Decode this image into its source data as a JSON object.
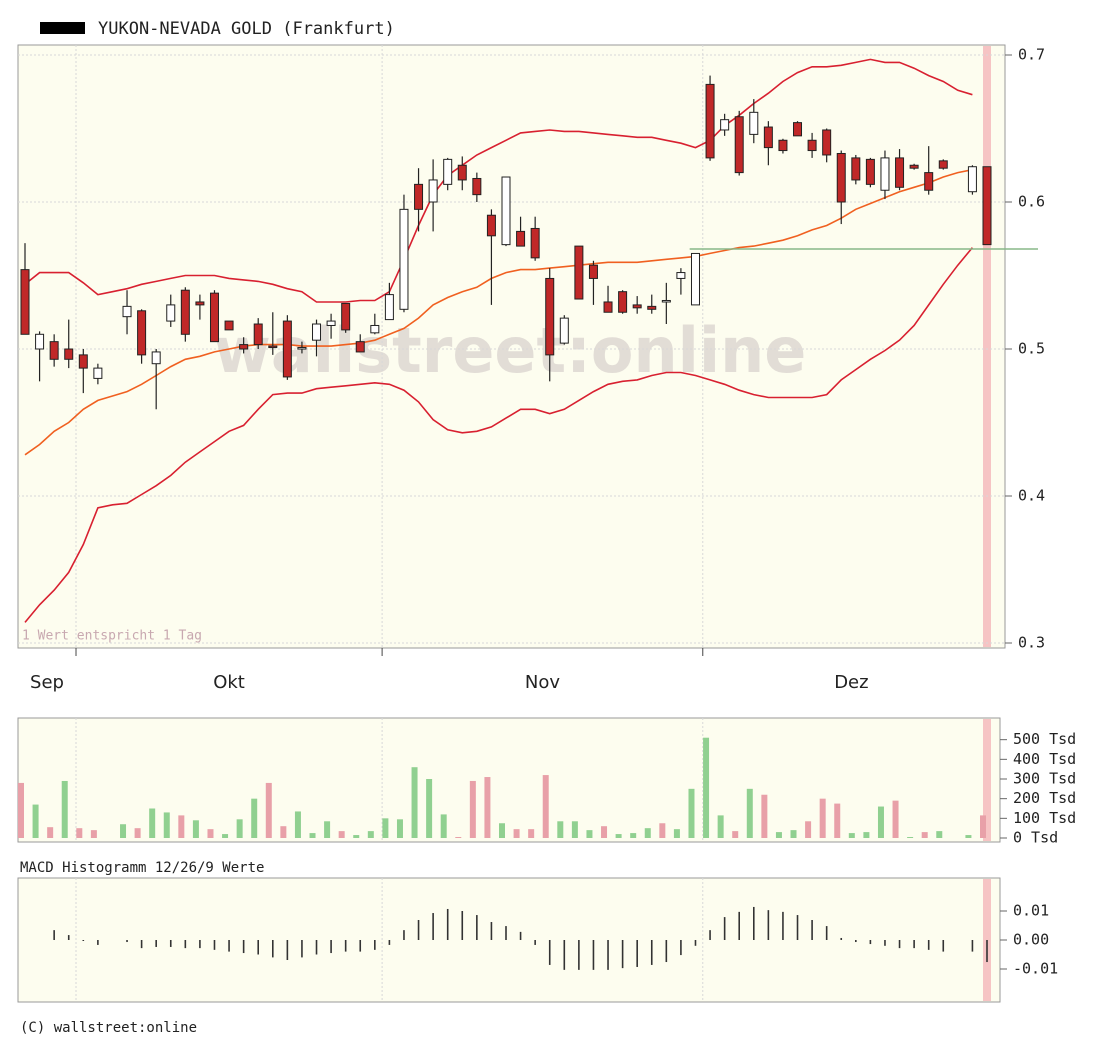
{
  "title": "YUKON-NEVADA GOLD (Frankfurt)",
  "footer": "(C) wallstreet:online",
  "chart_data": [
    {
      "type": "candlestick",
      "watermark": "wallstreet:online",
      "note": "1 Wert entspricht 1 Tag",
      "months": [
        "Sep",
        "Okt",
        "Nov",
        "Dez"
      ],
      "xticks": [
        3.5,
        24.5,
        46.5
      ],
      "open": [
        0.554,
        0.5,
        0.505,
        0.5,
        0.496,
        0.48,
        null,
        0.522,
        0.526,
        0.49,
        0.519,
        0.54,
        0.532,
        0.538,
        0.519,
        0.503,
        0.517,
        0.502,
        0.519,
        0.5,
        0.506,
        0.516,
        0.531,
        0.505,
        0.511,
        0.52,
        0.527,
        0.612,
        0.6,
        0.612,
        0.625,
        0.616,
        0.591,
        0.571,
        0.58,
        0.582,
        0.548,
        0.504,
        0.57,
        0.557,
        0.532,
        0.539,
        0.53,
        0.529,
        0.532,
        0.548,
        0.53,
        0.68,
        0.649,
        0.658,
        0.646,
        0.651,
        0.642,
        0.654,
        0.642,
        0.649,
        0.633,
        0.63,
        0.629,
        0.608,
        0.63,
        0.625,
        0.62,
        0.628,
        null,
        0.607,
        0.624
      ],
      "high": [
        0.572,
        0.512,
        0.51,
        0.52,
        0.5,
        0.49,
        null,
        0.54,
        0.527,
        0.5,
        0.537,
        0.542,
        0.537,
        0.54,
        0.519,
        0.508,
        0.521,
        0.525,
        0.523,
        0.505,
        0.52,
        0.524,
        0.531,
        0.51,
        0.524,
        0.545,
        0.605,
        0.623,
        0.629,
        0.63,
        0.631,
        0.62,
        0.595,
        0.617,
        0.59,
        0.59,
        0.555,
        0.523,
        0.57,
        0.56,
        0.543,
        0.54,
        0.536,
        0.537,
        0.545,
        0.555,
        0.565,
        0.686,
        0.66,
        0.662,
        0.67,
        0.655,
        0.643,
        0.655,
        0.647,
        0.65,
        0.635,
        0.632,
        0.63,
        0.635,
        0.636,
        0.626,
        0.638,
        0.629,
        null,
        0.625,
        0.624
      ],
      "low": [
        0.51,
        0.478,
        0.488,
        0.487,
        0.47,
        0.476,
        null,
        0.51,
        0.49,
        0.459,
        0.515,
        0.505,
        0.52,
        0.505,
        0.513,
        0.497,
        0.5,
        0.496,
        0.479,
        0.497,
        0.495,
        0.507,
        0.511,
        0.498,
        0.51,
        0.52,
        0.525,
        0.58,
        0.58,
        0.608,
        0.608,
        0.6,
        0.53,
        0.57,
        0.57,
        0.56,
        0.478,
        0.503,
        0.534,
        0.53,
        0.525,
        0.524,
        0.524,
        0.524,
        0.517,
        0.537,
        0.53,
        0.628,
        0.645,
        0.618,
        0.64,
        0.625,
        0.633,
        0.645,
        0.63,
        0.627,
        0.585,
        0.612,
        0.61,
        0.602,
        0.608,
        0.622,
        0.605,
        0.622,
        null,
        0.605,
        0.571
      ],
      "close": [
        0.51,
        0.51,
        0.493,
        0.493,
        0.487,
        0.487,
        null,
        0.529,
        0.496,
        0.498,
        0.53,
        0.51,
        0.53,
        0.505,
        0.513,
        0.5,
        0.503,
        0.501,
        0.481,
        0.501,
        0.517,
        0.519,
        0.513,
        0.498,
        0.516,
        0.537,
        0.595,
        0.595,
        0.615,
        0.629,
        0.615,
        0.605,
        0.577,
        0.617,
        0.57,
        0.562,
        0.496,
        0.521,
        0.534,
        0.548,
        0.525,
        0.525,
        0.528,
        0.527,
        0.533,
        0.552,
        0.565,
        0.63,
        0.656,
        0.62,
        0.661,
        0.637,
        0.635,
        0.645,
        0.635,
        0.632,
        0.6,
        0.615,
        0.612,
        0.63,
        0.61,
        0.623,
        0.608,
        0.623,
        null,
        0.624,
        0.571
      ],
      "up_color": "#ffffff",
      "down_color": "#c02828",
      "overlays": [
        {
          "color": "#d82030",
          "values": [
            0.544,
            0.552,
            0.552,
            0.552,
            0.545,
            0.537,
            0.539,
            0.541,
            0.544,
            0.546,
            0.548,
            0.55,
            0.55,
            0.55,
            0.548,
            0.547,
            0.546,
            0.544,
            0.541,
            0.539,
            0.532,
            0.532,
            0.532,
            0.533,
            0.533,
            0.539,
            0.561,
            0.584,
            0.605,
            0.618,
            0.625,
            0.632,
            0.637,
            0.642,
            0.647,
            0.648,
            0.649,
            0.648,
            0.648,
            0.647,
            0.646,
            0.645,
            0.644,
            0.644,
            0.642,
            0.64,
            0.637,
            0.642,
            0.652,
            0.659,
            0.667,
            0.674,
            0.682,
            0.688,
            0.692,
            0.692,
            0.693,
            0.695,
            0.697,
            0.695,
            0.695,
            0.691,
            0.686,
            0.682,
            0.676,
            0.673,
            null
          ]
        },
        {
          "color": "#f06020",
          "values": [
            0.428,
            0.435,
            0.444,
            0.45,
            0.459,
            0.465,
            0.468,
            0.471,
            0.476,
            0.482,
            0.488,
            0.493,
            0.495,
            0.498,
            0.5,
            0.502,
            0.503,
            0.503,
            0.503,
            0.502,
            0.502,
            0.502,
            0.503,
            0.504,
            0.506,
            0.51,
            0.514,
            0.521,
            0.53,
            0.535,
            0.539,
            0.542,
            0.548,
            0.552,
            0.554,
            0.554,
            0.555,
            0.556,
            0.557,
            0.558,
            0.559,
            0.559,
            0.559,
            0.56,
            0.561,
            0.562,
            0.563,
            0.565,
            0.567,
            0.569,
            0.57,
            0.572,
            0.574,
            0.577,
            0.581,
            0.584,
            0.589,
            0.595,
            0.599,
            0.603,
            0.607,
            0.61,
            0.613,
            0.617,
            0.62,
            0.622,
            null
          ]
        },
        {
          "color": "#d82030",
          "values": [
            0.314,
            0.326,
            0.336,
            0.348,
            0.367,
            0.392,
            0.394,
            0.395,
            0.401,
            0.407,
            0.414,
            0.423,
            0.43,
            0.437,
            0.444,
            0.448,
            0.459,
            0.469,
            0.47,
            0.47,
            0.473,
            0.474,
            0.475,
            0.476,
            0.477,
            0.476,
            0.472,
            0.464,
            0.452,
            0.445,
            0.443,
            0.444,
            0.447,
            0.453,
            0.459,
            0.459,
            0.456,
            0.459,
            0.465,
            0.471,
            0.476,
            0.478,
            0.479,
            0.482,
            0.484,
            0.484,
            0.482,
            0.479,
            0.476,
            0.472,
            0.469,
            0.467,
            0.467,
            0.467,
            0.467,
            0.469,
            0.479,
            0.486,
            0.493,
            0.499,
            0.506,
            0.516,
            0.53,
            0.544,
            0.557,
            0.569,
            null
          ]
        }
      ],
      "support_level": 0.568,
      "support_color": "#88b888",
      "ylim": [
        0.3,
        0.7
      ],
      "yticks": [
        0.7,
        0.6,
        0.5,
        0.4,
        0.3
      ],
      "grid": true
    },
    {
      "type": "bar",
      "values": [
        280,
        170,
        55,
        290,
        50,
        40,
        null,
        70,
        50,
        150,
        130,
        115,
        90,
        45,
        20,
        95,
        200,
        280,
        60,
        135,
        25,
        85,
        35,
        15,
        35,
        100,
        95,
        360,
        300,
        120,
        5,
        290,
        310,
        75,
        45,
        45,
        320,
        85,
        85,
        40,
        60,
        20,
        25,
        50,
        75,
        45,
        250,
        510,
        115,
        35,
        250,
        220,
        30,
        40,
        85,
        200,
        175,
        25,
        30,
        160,
        190,
        5,
        30,
        35,
        null,
        15,
        115
      ],
      "colors": [
        "#e8a0a8",
        "#90d090",
        "#e8a0a8",
        "#90d090",
        "#e8a0a8",
        "#e8a0a8",
        null,
        "#90d090",
        "#e8a0a8",
        "#90d090",
        "#90d090",
        "#e8a0a8",
        "#90d090",
        "#e8a0a8",
        "#90d090",
        "#90d090",
        "#90d090",
        "#e8a0a8",
        "#e8a0a8",
        "#90d090",
        "#90d090",
        "#90d090",
        "#e8a0a8",
        "#90d090",
        "#90d090",
        "#90d090",
        "#90d090",
        "#90d090",
        "#90d090",
        "#90d090",
        "#e8a0a8",
        "#e8a0a8",
        "#e8a0a8",
        "#90d090",
        "#e8a0a8",
        "#e8a0a8",
        "#e8a0a8",
        "#90d090",
        "#90d090",
        "#90d090",
        "#e8a0a8",
        "#90d090",
        "#90d090",
        "#90d090",
        "#e8a0a8",
        "#90d090",
        "#90d090",
        "#90d090",
        "#90d090",
        "#e8a0a8",
        "#90d090",
        "#e8a0a8",
        "#90d090",
        "#90d090",
        "#e8a0a8",
        "#e8a0a8",
        "#e8a0a8",
        "#90d090",
        "#90d090",
        "#90d090",
        "#e8a0a8",
        "#90d090",
        "#e8a0a8",
        "#90d090",
        null,
        "#90d090",
        "#e8a0a8"
      ],
      "ylim": [
        0,
        600
      ],
      "yticks": [
        {
          "value": 500,
          "label": "500 Tsd"
        },
        {
          "value": 400,
          "label": "400 Tsd"
        },
        {
          "value": 300,
          "label": "300 Tsd"
        },
        {
          "value": 200,
          "label": "200 Tsd"
        },
        {
          "value": 100,
          "label": "100 Tsd"
        },
        {
          "value": 0,
          "label": "0 Tsd"
        }
      ]
    },
    {
      "type": "stem",
      "title": "MACD Histogramm 12/26/9 Werte",
      "color": "#333333",
      "values": [
        null,
        null,
        0.0034,
        0.0017,
        0,
        -0.0017,
        null,
        -0.0007,
        -0.0028,
        -0.0024,
        -0.0024,
        -0.0028,
        -0.0028,
        -0.0034,
        -0.004,
        -0.0045,
        -0.005,
        -0.006,
        -0.0069,
        -0.006,
        -0.005,
        -0.0045,
        -0.004,
        -0.004,
        -0.0034,
        -0.0017,
        0.0034,
        0.0069,
        0.0093,
        0.0107,
        0.01,
        0.0086,
        0.0062,
        0.0048,
        0.0028,
        -0.0017,
        -0.0086,
        -0.0103,
        -0.0103,
        -0.0103,
        -0.0103,
        -0.0097,
        -0.0093,
        -0.0086,
        -0.0076,
        -0.0052,
        -0.002,
        0.0034,
        0.0079,
        0.0097,
        0.0114,
        0.0103,
        0.0097,
        0.0086,
        0.0069,
        0.0048,
        0.0007,
        -0.0007,
        -0.0014,
        -0.002,
        -0.0028,
        -0.0028,
        -0.0034,
        -0.004,
        null,
        -0.004,
        -0.0076
      ],
      "ylim": [
        -0.02,
        0.02
      ],
      "yticks": [
        0.01,
        {
          "value": 0,
          "label": "0.00"
        },
        -0.01
      ]
    }
  ]
}
